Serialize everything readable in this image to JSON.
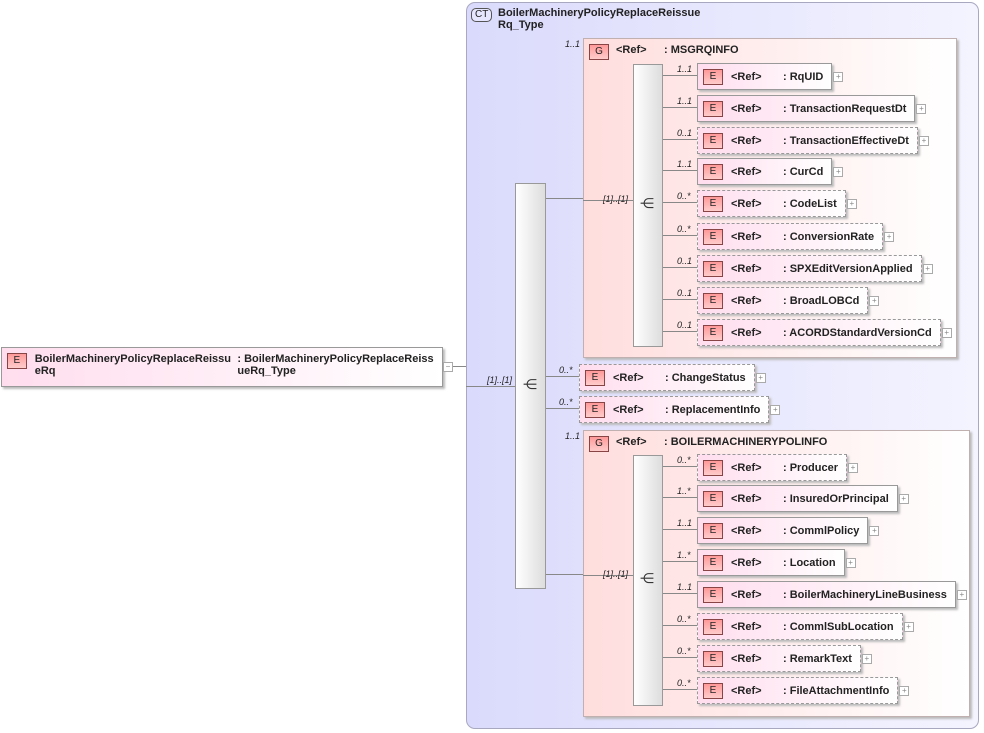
{
  "root": {
    "badge": "E",
    "name": "BoilerMachineryPolicyReplaceReissueRq",
    "type": ": BoilerMachineryPolicyReplaceReissueRq_Type"
  },
  "complex_type": {
    "badge": "CT",
    "name": "BoilerMachineryPolicyReplaceReissueRq_Type",
    "sequence_cardinality": "[1]..[1]"
  },
  "ref_label": "<Ref>",
  "groups": [
    {
      "badge": "G",
      "name": ": MSGRQINFO",
      "cardinality": "1..1",
      "sequence_cardinality": "[1]..[1]",
      "children": [
        {
          "name": ": RqUID",
          "cardinality": "1..1"
        },
        {
          "name": ": TransactionRequestDt",
          "cardinality": "1..1"
        },
        {
          "name": ": TransactionEffectiveDt",
          "cardinality": "0..1"
        },
        {
          "name": ": CurCd",
          "cardinality": "1..1"
        },
        {
          "name": ": CodeList",
          "cardinality": "0..*"
        },
        {
          "name": ": ConversionRate",
          "cardinality": "0..*"
        },
        {
          "name": ": SPXEditVersionApplied",
          "cardinality": "0..1"
        },
        {
          "name": ": BroadLOBCd",
          "cardinality": "0..1"
        },
        {
          "name": ": ACORDStandardVersionCd",
          "cardinality": "0..1"
        }
      ]
    },
    {
      "badge": "G",
      "name": ": BOILERMACHINERYPOLINFO",
      "cardinality": "1..1",
      "sequence_cardinality": "[1]..[1]",
      "children": [
        {
          "name": ": Producer",
          "cardinality": "0..*"
        },
        {
          "name": ": InsuredOrPrincipal",
          "cardinality": "1..*"
        },
        {
          "name": ": CommlPolicy",
          "cardinality": "1..1"
        },
        {
          "name": ": Location",
          "cardinality": "1..*"
        },
        {
          "name": ": BoilerMachineryLineBusiness",
          "cardinality": "1..1"
        },
        {
          "name": ": CommlSubLocation",
          "cardinality": "0..*"
        },
        {
          "name": ": RemarkText",
          "cardinality": "0..*"
        },
        {
          "name": ": FileAttachmentInfo",
          "cardinality": "0..*"
        }
      ]
    }
  ],
  "elements": [
    {
      "name": ": ChangeStatus",
      "cardinality": "0..*"
    },
    {
      "name": ": ReplacementInfo",
      "cardinality": "0..*"
    }
  ],
  "icons": {
    "element_badge": "E",
    "expand": "plus-icon",
    "collapse": "minus-icon",
    "sequence": "sequence-icon"
  }
}
